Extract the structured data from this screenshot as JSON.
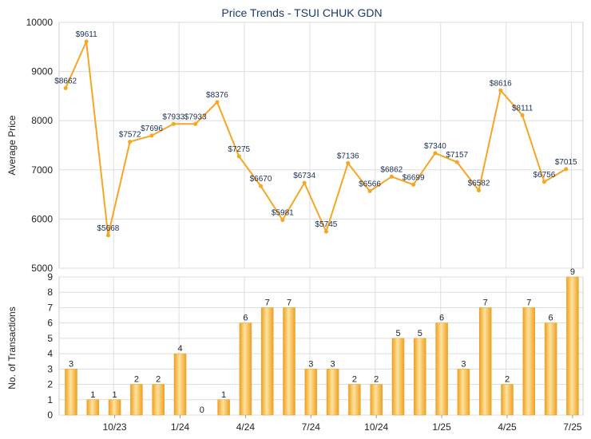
{
  "chart_data": [
    {
      "type": "line",
      "title": "Price Trends - TSUI CHUK GDN",
      "ylabel": "Average Price",
      "ylim": [
        5000,
        10000
      ],
      "yticks": [
        "5000",
        "6000",
        "7000",
        "8000",
        "9000",
        "10000"
      ],
      "point_labels": [
        "$8662",
        "$9611",
        "$5668",
        "$7572",
        "$7696",
        "$7933",
        "$7933",
        "$8376",
        "$7275",
        "$6670",
        "$5981",
        "$6734",
        "$5745",
        "$7136",
        "$6566",
        "$6862",
        "$6699",
        "$7340",
        "$7157",
        "$6582",
        "$8616",
        "$8111",
        "$6756",
        "$7015"
      ],
      "values": [
        8662,
        9611,
        5668,
        7572,
        7696,
        7933,
        7933,
        8376,
        7275,
        6670,
        5981,
        6734,
        5745,
        7136,
        6566,
        6862,
        6699,
        7340,
        7157,
        6582,
        8616,
        8111,
        6756,
        7015
      ],
      "line_points": [
        {
          "slot": 0.3,
          "value": 8662
        },
        {
          "slot": 1.25,
          "value": 9611
        },
        {
          "slot": 2.25,
          "value": 5668
        },
        {
          "slot": 3.25,
          "value": 7572
        },
        {
          "slot": 4.25,
          "value": 7696
        },
        {
          "slot": 5.25,
          "value": 7933
        },
        {
          "slot": 6.25,
          "value": 7933
        },
        {
          "slot": 7.25,
          "value": 8376
        },
        {
          "slot": 8.25,
          "value": 7275
        },
        {
          "slot": 9.25,
          "value": 6670
        },
        {
          "slot": 10.25,
          "value": 5981
        },
        {
          "slot": 11.25,
          "value": 6734
        },
        {
          "slot": 12.25,
          "value": 5745
        },
        {
          "slot": 13.25,
          "value": 7136
        },
        {
          "slot": 14.25,
          "value": 6566
        },
        {
          "slot": 15.25,
          "value": 6862
        },
        {
          "slot": 16.25,
          "value": 6699
        },
        {
          "slot": 17.25,
          "value": 7340
        },
        {
          "slot": 18.25,
          "value": 7157
        },
        {
          "slot": 19.25,
          "value": 6582
        },
        {
          "slot": 20.25,
          "value": 8616
        },
        {
          "slot": 21.25,
          "value": 8111
        },
        {
          "slot": 22.25,
          "value": 6756
        },
        {
          "slot": 23.25,
          "value": 7015
        }
      ],
      "color": "#f5a623",
      "grid": true
    },
    {
      "type": "bar",
      "ylabel": "No. of Transactions",
      "ylim": [
        0,
        9
      ],
      "yticks": [
        "0",
        "1",
        "2",
        "3",
        "4",
        "5",
        "6",
        "7",
        "8",
        "9"
      ],
      "values": [
        3,
        1,
        1,
        2,
        2,
        4,
        0,
        1,
        6,
        7,
        7,
        3,
        3,
        2,
        2,
        5,
        5,
        6,
        3,
        7,
        2,
        7,
        6,
        9
      ],
      "xtick_labels": [
        "10/23",
        "1/24",
        "4/24",
        "7/24",
        "10/24",
        "1/25",
        "4/25",
        "7/25"
      ],
      "xtick_slots": [
        2,
        5,
        8,
        11,
        14,
        17,
        20,
        23
      ],
      "color": "#f5a623",
      "grid": true
    }
  ]
}
